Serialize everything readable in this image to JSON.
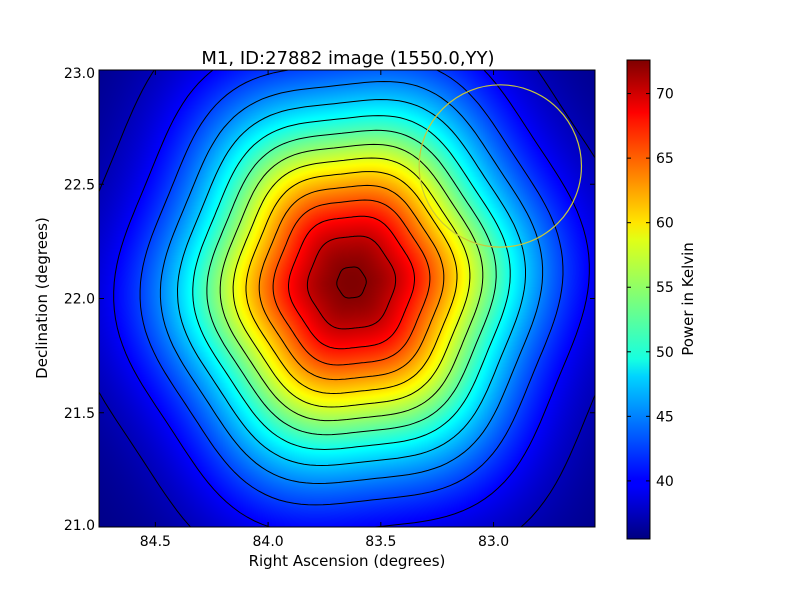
{
  "chart_data": {
    "type": "heatmap",
    "title": "M1, ID:27882 image (1550.0,YY)",
    "xlabel": "Right Ascension (degrees)",
    "ylabel": "Declination (degrees)",
    "colorbar_label": "Power in Kelvin",
    "xlim": [
      84.75,
      82.55
    ],
    "ylim": [
      21.0,
      23.0
    ],
    "x_ticks": [
      84.5,
      84.0,
      83.5,
      83.0
    ],
    "x_tick_labels": [
      "84.5",
      "84.0",
      "83.5",
      "83.0"
    ],
    "y_ticks": [
      21.0,
      21.5,
      22.0,
      22.5,
      23.0
    ],
    "y_tick_labels": [
      "21.0",
      "21.5",
      "22.0",
      "22.5",
      "23.0"
    ],
    "colorbar_range": [
      35.5,
      72.6
    ],
    "colorbar_ticks": [
      40,
      45,
      50,
      55,
      60,
      65,
      70
    ],
    "colorbar_tick_labels": [
      "40",
      "45",
      "50",
      "55",
      "60",
      "65",
      "70"
    ],
    "colormap": "jet",
    "source": {
      "ra": 83.63,
      "dec": 22.07,
      "peak_kelvin": 72.6,
      "background_kelvin": 35.5,
      "sigma_ra_deg": 0.5,
      "sigma_dec_deg": 0.54
    },
    "contour_levels": [
      37.5,
      40,
      42.5,
      45,
      47.5,
      50,
      52.5,
      55,
      57.5,
      60,
      62.5,
      65,
      67.5,
      70,
      72.3
    ],
    "contour_color": "#000000",
    "beam_circle": {
      "ra": 82.97,
      "dec": 22.58,
      "radius_deg": 0.36,
      "color": "#c8c83c"
    },
    "grid": false
  }
}
